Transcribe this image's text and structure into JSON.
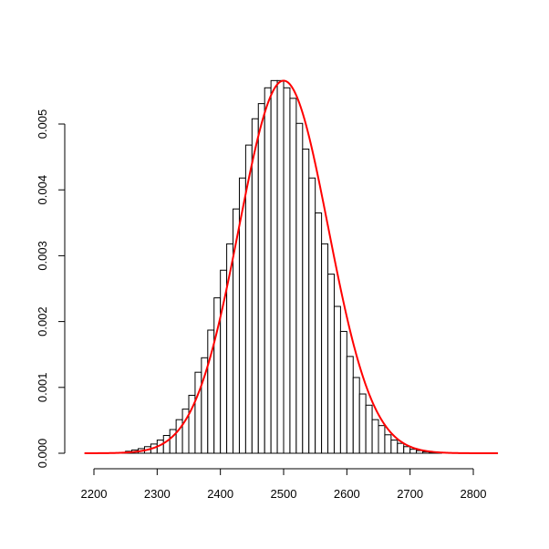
{
  "chart_data": {
    "type": "bar",
    "title": "",
    "xlabel": "",
    "ylabel": "",
    "xlim": [
      2180,
      2840
    ],
    "ylim": [
      0,
      0.0057
    ],
    "x_ticks": [
      "2200",
      "2300",
      "2400",
      "2500",
      "2600",
      "2700",
      "2800"
    ],
    "y_ticks": [
      "0.000",
      "0.001",
      "0.002",
      "0.003",
      "0.004",
      "0.005"
    ],
    "bin_width": 10,
    "histogram": {
      "bin_starts": [
        2240,
        2250,
        2260,
        2270,
        2280,
        2290,
        2300,
        2310,
        2320,
        2330,
        2340,
        2350,
        2360,
        2370,
        2380,
        2390,
        2400,
        2410,
        2420,
        2430,
        2440,
        2450,
        2460,
        2470,
        2480,
        2490,
        2500,
        2510,
        2520,
        2530,
        2540,
        2550,
        2560,
        2570,
        2580,
        2590,
        2600,
        2610,
        2620,
        2630,
        2640,
        2650,
        2660,
        2670,
        2680,
        2690,
        2700,
        2710,
        2720,
        2730,
        2740,
        2750
      ],
      "densities": [
        1e-05,
        3e-05,
        5e-05,
        7e-05,
        0.0001,
        0.00014,
        0.0002,
        0.00027,
        0.00036,
        0.00051,
        0.00067,
        0.00088,
        0.00123,
        0.00145,
        0.00187,
        0.00236,
        0.00278,
        0.00318,
        0.00371,
        0.00418,
        0.00468,
        0.00508,
        0.00531,
        0.00555,
        0.00566,
        0.00566,
        0.00555,
        0.00539,
        0.00501,
        0.00462,
        0.00418,
        0.00365,
        0.00318,
        0.00272,
        0.00223,
        0.00185,
        0.00147,
        0.00115,
        0.0009,
        0.00073,
        0.00051,
        0.00042,
        0.00028,
        0.0002,
        0.00015,
        0.0001,
        6e-05,
        4e-05,
        2e-05,
        1e-05,
        1e-05,
        0.0
      ]
    },
    "series": [
      {
        "type": "line",
        "color": "#ff0000",
        "mean": 2500,
        "sd": 70.5,
        "x_range": [
          2185,
          2840
        ]
      }
    ],
    "grid": false,
    "colors": {
      "bars_fill": "#ffffff",
      "bars_stroke": "#000000",
      "curve": "#ff0000"
    }
  }
}
